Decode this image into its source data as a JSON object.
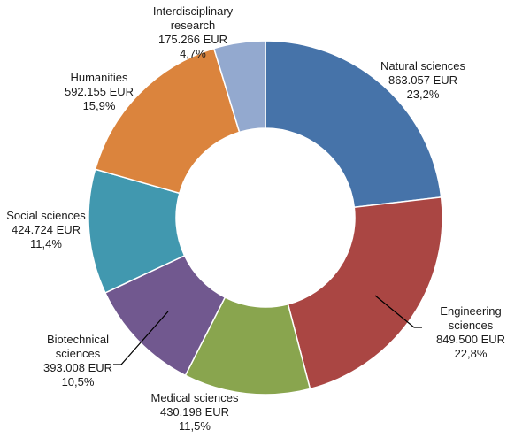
{
  "chart_data": {
    "type": "pie",
    "variant": "donut",
    "legend": "none",
    "slices": [
      {
        "name": "Natural sciences",
        "lines": [
          "Natural sciences"
        ],
        "value_label": "863.057 EUR",
        "pct_label": "23,2%",
        "value": 863057,
        "percent": 23.2,
        "color": "#4673A9"
      },
      {
        "name": "Engineering sciences",
        "lines": [
          "Engineering",
          "sciences"
        ],
        "value_label": "849.500 EUR",
        "pct_label": "22,8%",
        "value": 849500,
        "percent": 22.8,
        "color": "#AA4643"
      },
      {
        "name": "Medical sciences",
        "lines": [
          "Medical sciences"
        ],
        "value_label": "430.198 EUR",
        "pct_label": "11,5%",
        "value": 430198,
        "percent": 11.5,
        "color": "#89A54E"
      },
      {
        "name": "Biotechnical sciences",
        "lines": [
          "Biotechnical",
          "sciences"
        ],
        "value_label": "393.008 EUR",
        "pct_label": "10,5%",
        "value": 393008,
        "percent": 10.5,
        "color": "#71588F"
      },
      {
        "name": "Social sciences",
        "lines": [
          "Social sciences"
        ],
        "value_label": "424.724 EUR",
        "pct_label": "11,4%",
        "value": 424724,
        "percent": 11.4,
        "color": "#4198AF"
      },
      {
        "name": "Humanities",
        "lines": [
          "Humanities"
        ],
        "value_label": "592.155 EUR",
        "pct_label": "15,9%",
        "value": 592155,
        "percent": 15.9,
        "color": "#DB843D"
      },
      {
        "name": "Interdisciplinary research",
        "lines": [
          "Interdisciplinary",
          "research"
        ],
        "value_label": "175.266 EUR",
        "pct_label": "4,7%",
        "value": 175266,
        "percent": 4.7,
        "color": "#93A9CF"
      }
    ]
  }
}
